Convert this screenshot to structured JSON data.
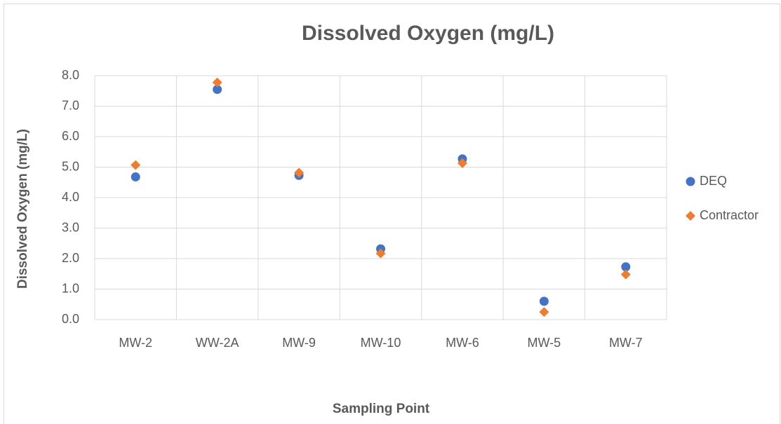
{
  "chart_data": {
    "type": "scatter",
    "title": "Dissolved Oxygen (mg/L)",
    "x_label": "Sampling Point",
    "y_label": "Dissolved Oxygen (mg/L)",
    "categories": [
      "MW-2",
      "WW-2A",
      "MW-9",
      "MW-10",
      "MW-6",
      "MW-5",
      "MW-7"
    ],
    "series": [
      {
        "name": "DEQ",
        "color": "#4472c4",
        "marker": "circle",
        "values": [
          4.68,
          7.55,
          4.73,
          2.32,
          5.27,
          0.6,
          1.73
        ]
      },
      {
        "name": "Contractor",
        "color": "#ed7d31",
        "marker": "diamond",
        "values": [
          5.07,
          7.78,
          4.82,
          2.17,
          5.13,
          0.25,
          1.48
        ]
      }
    ],
    "ylim": [
      0,
      8
    ],
    "yticks": [
      {
        "value": 0,
        "label": "0.0"
      },
      {
        "value": 1,
        "label": "1.0"
      },
      {
        "value": 2,
        "label": "2.0"
      },
      {
        "value": 3,
        "label": "3.0"
      },
      {
        "value": 4,
        "label": "4.0"
      },
      {
        "value": 5,
        "label": "5.0"
      },
      {
        "value": 6,
        "label": "6.0"
      },
      {
        "value": 7,
        "label": "7.0"
      },
      {
        "value": 8,
        "label": "8.0"
      }
    ],
    "grid": true,
    "legend": "right"
  }
}
